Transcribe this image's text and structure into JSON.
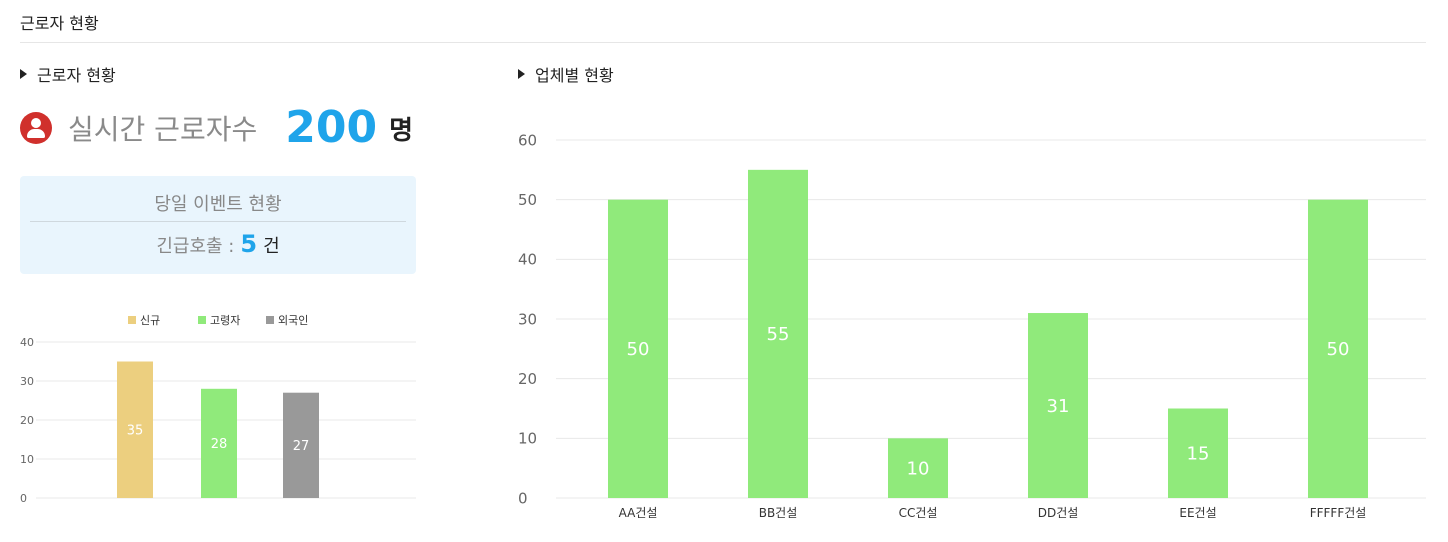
{
  "page": {
    "title": "근로자 현황"
  },
  "worker_section": {
    "heading": "근로자 현황",
    "realtime_label": "실시간 근로자수",
    "realtime_value": "200",
    "realtime_unit": "명",
    "icon": "person-icon",
    "event_box": {
      "title": "당일 이벤트 현황",
      "emergency_label": "긴급호출 :",
      "emergency_value": "5",
      "emergency_unit": "건"
    }
  },
  "company_section": {
    "heading": "업체별 현황"
  },
  "colors": {
    "accent_blue": "#1fa4ea",
    "icon_red": "#d0302c",
    "bar_new": "#eccf7f",
    "bar_green": "#90ea7b",
    "bar_gray": "#999999"
  },
  "chart_data": [
    {
      "type": "bar",
      "categories": [
        "신규",
        "고령자",
        "외국인"
      ],
      "values": [
        35,
        28,
        27
      ],
      "legend": [
        "신규",
        "고령자",
        "외국인"
      ],
      "legend_position": "top-center",
      "colors": [
        "#eccf7f",
        "#90ea7b",
        "#999999"
      ],
      "data_labels": true,
      "ylim": [
        0,
        40
      ],
      "yticks": [
        0,
        10,
        20,
        30,
        40
      ],
      "grid": true
    },
    {
      "type": "bar",
      "categories": [
        "AA건설",
        "BB건설",
        "CC건설",
        "DD건설",
        "EE건설",
        "FFFFF건설"
      ],
      "values": [
        50,
        55,
        10,
        31,
        15,
        50
      ],
      "colors": [
        "#90ea7b"
      ],
      "data_labels": true,
      "ylim": [
        0,
        60
      ],
      "yticks": [
        0,
        10,
        20,
        30,
        40,
        50,
        60
      ],
      "grid": true
    }
  ]
}
